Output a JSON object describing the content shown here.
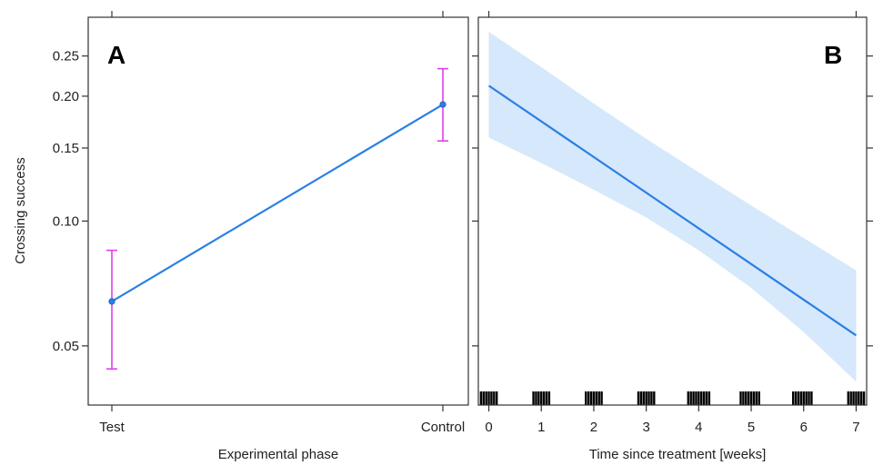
{
  "chart_data": [
    {
      "type": "line",
      "panel_label": "A",
      "xlabel": "Experimental phase",
      "ylabel": "Crossing success",
      "categories": [
        "Test",
        "Control"
      ],
      "values": [
        0.064,
        0.191
      ],
      "ci_lower": [
        0.044,
        0.156
      ],
      "ci_upper": [
        0.085,
        0.233
      ],
      "y_scale": "log",
      "ylim": [
        0.036,
        0.31
      ],
      "y_ticks": [
        0.05,
        0.1,
        0.15,
        0.2,
        0.25
      ],
      "y_tick_labels": [
        "0.05",
        "0.10",
        "0.15",
        "0.20",
        "0.25"
      ],
      "line_color": "#2a7fe6",
      "errorbar_color": "#e040e8",
      "grid": false
    },
    {
      "type": "area",
      "panel_label": "B",
      "xlabel": "Time since treatment [weeks]",
      "ylabel": "",
      "x_ticks": [
        0,
        1,
        2,
        3,
        4,
        5,
        6,
        7
      ],
      "x_tick_labels": [
        "0",
        "1",
        "2",
        "3",
        "4",
        "5",
        "6",
        "7"
      ],
      "xlim": [
        -0.2,
        7.2
      ],
      "y_scale": "log",
      "ylim": [
        0.036,
        0.31
      ],
      "fit": {
        "x": [
          0,
          7
        ],
        "y": [
          0.212,
          0.053
        ]
      },
      "band_lower": {
        "x": [
          0,
          1,
          2,
          3,
          4,
          5,
          6,
          7
        ],
        "y": [
          0.159,
          0.138,
          0.119,
          0.102,
          0.085,
          0.069,
          0.054,
          0.041
        ]
      },
      "band_upper": {
        "x": [
          0,
          1,
          2,
          3,
          4,
          5,
          6,
          7
        ],
        "y": [
          0.286,
          0.235,
          0.192,
          0.158,
          0.131,
          0.109,
          0.091,
          0.076
        ]
      },
      "rug_x": [
        -0.15,
        -0.1,
        -0.05,
        0.0,
        0.05,
        0.1,
        0.15,
        0.85,
        0.9,
        0.95,
        1.0,
        1.05,
        1.1,
        1.15,
        1.85,
        1.9,
        1.95,
        2.0,
        2.05,
        2.1,
        2.15,
        2.85,
        2.9,
        2.95,
        3.0,
        3.05,
        3.1,
        3.15,
        3.8,
        3.85,
        3.9,
        3.95,
        4.0,
        4.05,
        4.1,
        4.15,
        4.2,
        4.8,
        4.85,
        4.9,
        4.95,
        5.0,
        5.05,
        5.1,
        5.15,
        5.8,
        5.85,
        5.9,
        5.95,
        6.0,
        6.05,
        6.1,
        6.15,
        6.85,
        6.9,
        6.95,
        7.0,
        7.05,
        7.1,
        7.15
      ],
      "line_color": "#2a7fe6",
      "band_color": "#d6e8fb",
      "grid": false
    }
  ]
}
